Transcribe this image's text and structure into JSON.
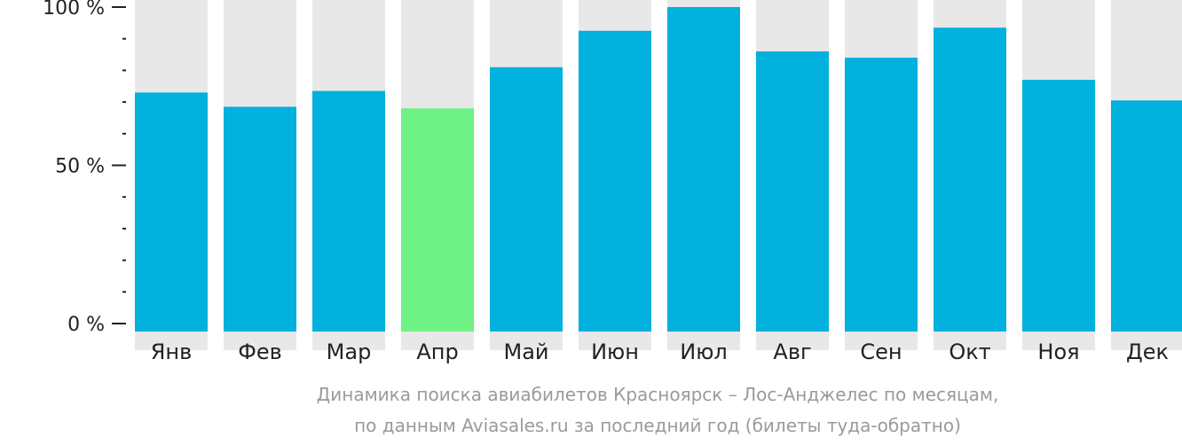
{
  "chart_data": {
    "type": "bar",
    "categories": [
      "Янв",
      "Фев",
      "Мар",
      "Апр",
      "Май",
      "Июн",
      "Июл",
      "Авг",
      "Сен",
      "Окт",
      "Ноя",
      "Дек"
    ],
    "values": [
      73,
      68.5,
      73.5,
      68,
      81,
      92.5,
      100,
      86,
      84,
      93.5,
      77,
      70.5
    ],
    "ylim": [
      0,
      100
    ],
    "yticks": [
      {
        "value": 0,
        "label": "0 %"
      },
      {
        "value": 50,
        "label": "50 %"
      },
      {
        "value": 100,
        "label": "100 %"
      }
    ],
    "minor_ytick_step": 10,
    "highlight_index": 3,
    "colors": {
      "bar": "#00b0dd",
      "highlight": "#6ef286",
      "background_bar": "#e8e8e8",
      "axis": "#222222",
      "caption": "#9a9a9a"
    },
    "grid": false,
    "legend": "none"
  },
  "caption": {
    "line1": "Динамика поиска авиабилетов Красноярск – Лос-Анджелес по месяцам,",
    "line2": "по данным Aviasales.ru за последний год (билеты туда-обратно)"
  }
}
